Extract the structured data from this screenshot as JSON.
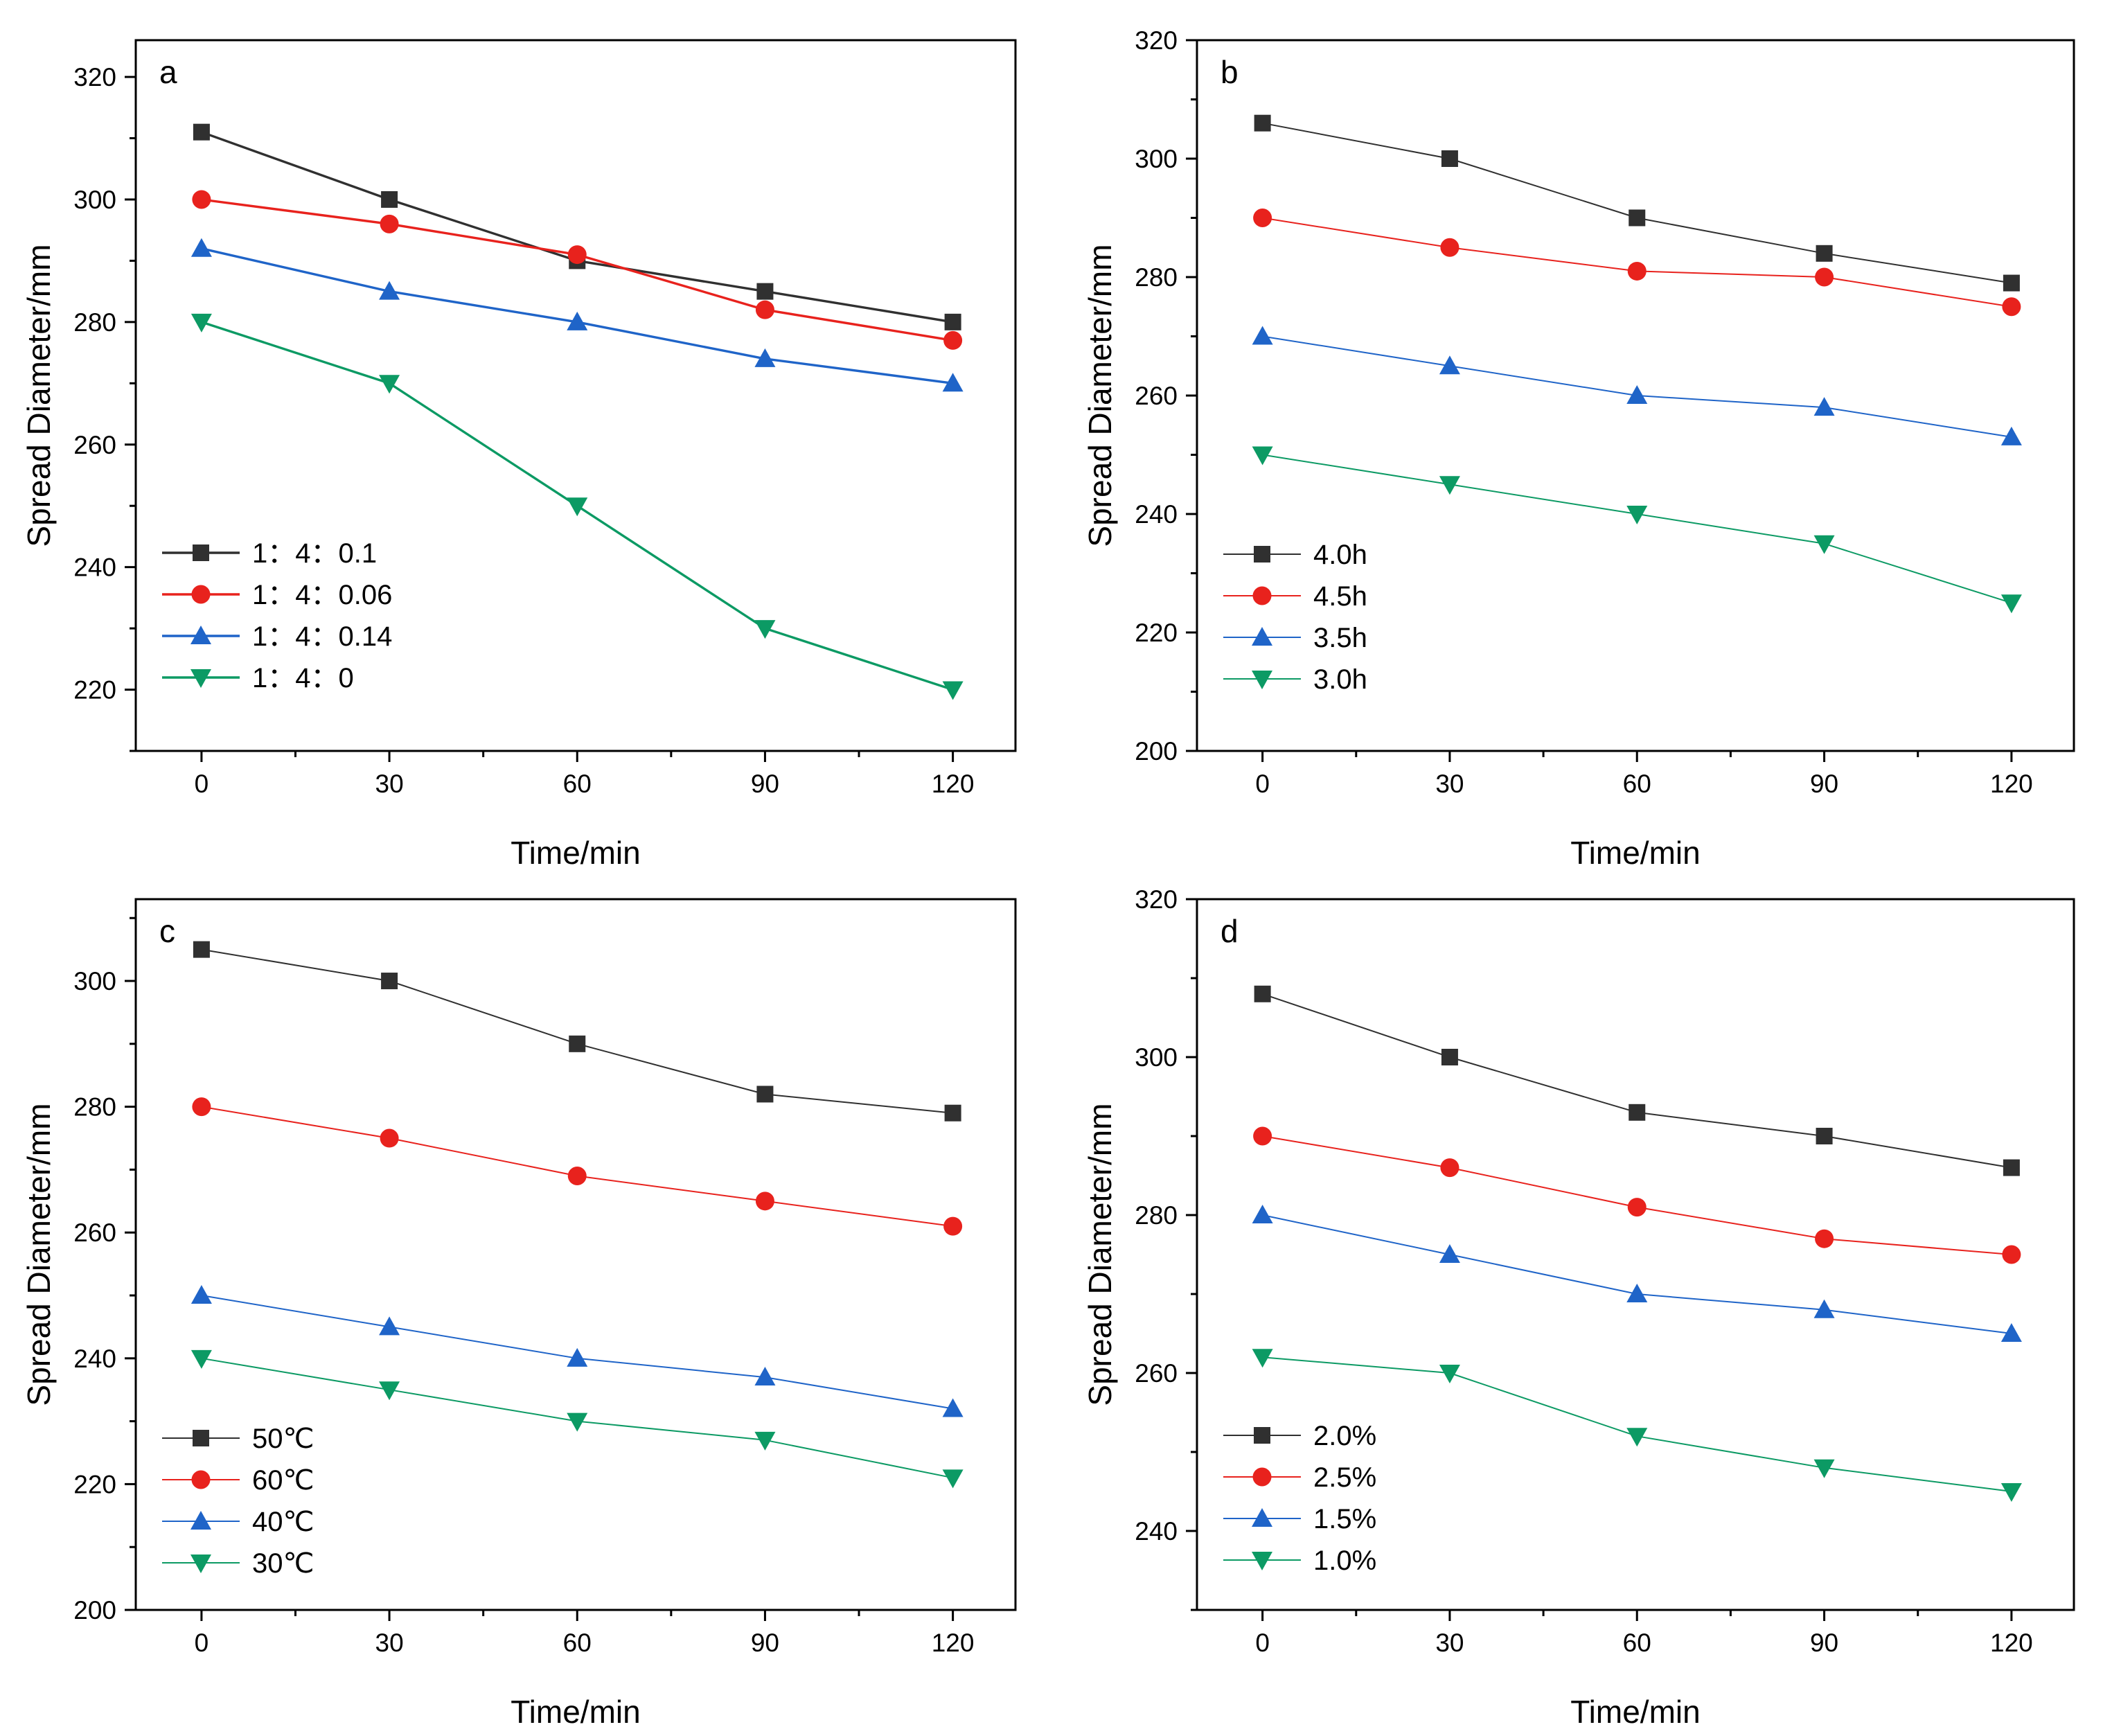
{
  "chart_data": [
    {
      "type": "line",
      "panel_label": "a",
      "xlabel": "Time/min",
      "ylabel": "Spread Diameter/mm",
      "x": [
        0,
        30,
        60,
        90,
        120
      ],
      "x_ticks": [
        "0",
        "30",
        "60",
        "90",
        "120"
      ],
      "xlim": [
        -10.5,
        130
      ],
      "ylim": [
        210,
        326
      ],
      "y_ticks": [
        "220",
        "240",
        "260",
        "280",
        "300",
        "320"
      ],
      "y_tick_values": [
        220,
        240,
        260,
        280,
        300,
        320
      ],
      "legend_position": "left",
      "series": [
        {
          "name": "1：4：0.1",
          "marker": "square",
          "color": "#303030",
          "values": [
            311,
            300,
            290,
            285,
            280
          ]
        },
        {
          "name": "1：4：0.06",
          "marker": "circle",
          "color": "#e8221d",
          "values": [
            300,
            296,
            291,
            282,
            277
          ]
        },
        {
          "name": "1：4：0.14",
          "marker": "triangle-up",
          "color": "#1f64c8",
          "values": [
            292,
            285,
            280,
            274,
            270
          ]
        },
        {
          "name": "1：4：0",
          "marker": "triangle-down",
          "color": "#0c9a64",
          "values": [
            280,
            270,
            250,
            230,
            220
          ]
        }
      ]
    },
    {
      "type": "line",
      "panel_label": "b",
      "xlabel": "Time/min",
      "ylabel": "Spread Diameter/mm",
      "x": [
        0,
        30,
        60,
        90,
        120
      ],
      "x_ticks": [
        "0",
        "30",
        "60",
        "90",
        "120"
      ],
      "xlim": [
        -10.5,
        130
      ],
      "ylim": [
        200,
        320
      ],
      "y_ticks": [
        "200",
        "220",
        "240",
        "260",
        "280",
        "300",
        "320"
      ],
      "y_tick_values": [
        200,
        220,
        240,
        260,
        280,
        300,
        320
      ],
      "legend_position": "left",
      "series": [
        {
          "name": "4.0h",
          "marker": "square",
          "color": "#303030",
          "values": [
            306,
            300,
            290,
            284,
            279
          ]
        },
        {
          "name": "4.5h",
          "marker": "circle",
          "color": "#e8221d",
          "values": [
            290,
            285,
            281,
            280,
            275
          ]
        },
        {
          "name": "3.5h",
          "marker": "triangle-up",
          "color": "#1f64c8",
          "values": [
            270,
            265,
            260,
            258,
            253
          ]
        },
        {
          "name": "3.0h",
          "marker": "triangle-down",
          "color": "#0c9a64",
          "values": [
            250,
            245,
            240,
            235,
            225
          ]
        }
      ]
    },
    {
      "type": "line",
      "panel_label": "c",
      "xlabel": "Time/min",
      "ylabel": "Spread Diameter/mm",
      "x": [
        0,
        30,
        60,
        90,
        120
      ],
      "x_ticks": [
        "0",
        "30",
        "60",
        "90",
        "120"
      ],
      "xlim": [
        -10.5,
        130
      ],
      "ylim": [
        200,
        313
      ],
      "y_ticks": [
        "200",
        "220",
        "240",
        "260",
        "280",
        "300"
      ],
      "y_tick_values": [
        200,
        220,
        240,
        260,
        280,
        300
      ],
      "legend_position": "left",
      "series": [
        {
          "name": "50℃",
          "marker": "square",
          "color": "#303030",
          "values": [
            305,
            300,
            290,
            282,
            279
          ]
        },
        {
          "name": "60℃",
          "marker": "circle",
          "color": "#e8221d",
          "values": [
            280,
            275,
            269,
            265,
            261
          ]
        },
        {
          "name": "40℃",
          "marker": "triangle-up",
          "color": "#1f64c8",
          "values": [
            250,
            245,
            240,
            237,
            232
          ]
        },
        {
          "name": "30℃",
          "marker": "triangle-down",
          "color": "#0c9a64",
          "values": [
            240,
            235,
            230,
            227,
            221
          ]
        }
      ]
    },
    {
      "type": "line",
      "panel_label": "d",
      "xlabel": "Time/min",
      "ylabel": "Spread Diameter/mm",
      "x": [
        0,
        30,
        60,
        90,
        120
      ],
      "x_ticks": [
        "0",
        "30",
        "60",
        "90",
        "120"
      ],
      "xlim": [
        -10.5,
        130
      ],
      "ylim": [
        230,
        320
      ],
      "y_ticks": [
        "240",
        "260",
        "280",
        "300",
        "320"
      ],
      "y_tick_values": [
        240,
        260,
        280,
        300,
        320
      ],
      "legend_position": "left",
      "series": [
        {
          "name": "2.0%",
          "marker": "square",
          "color": "#303030",
          "values": [
            308,
            300,
            293,
            290,
            286
          ]
        },
        {
          "name": "2.5%",
          "marker": "circle",
          "color": "#e8221d",
          "values": [
            290,
            286,
            281,
            277,
            275
          ]
        },
        {
          "name": "1.5%",
          "marker": "triangle-up",
          "color": "#1f64c8",
          "values": [
            280,
            275,
            270,
            268,
            265
          ]
        },
        {
          "name": "1.0%",
          "marker": "triangle-down",
          "color": "#0c9a64",
          "values": [
            262,
            260,
            252,
            248,
            245
          ]
        }
      ]
    }
  ]
}
